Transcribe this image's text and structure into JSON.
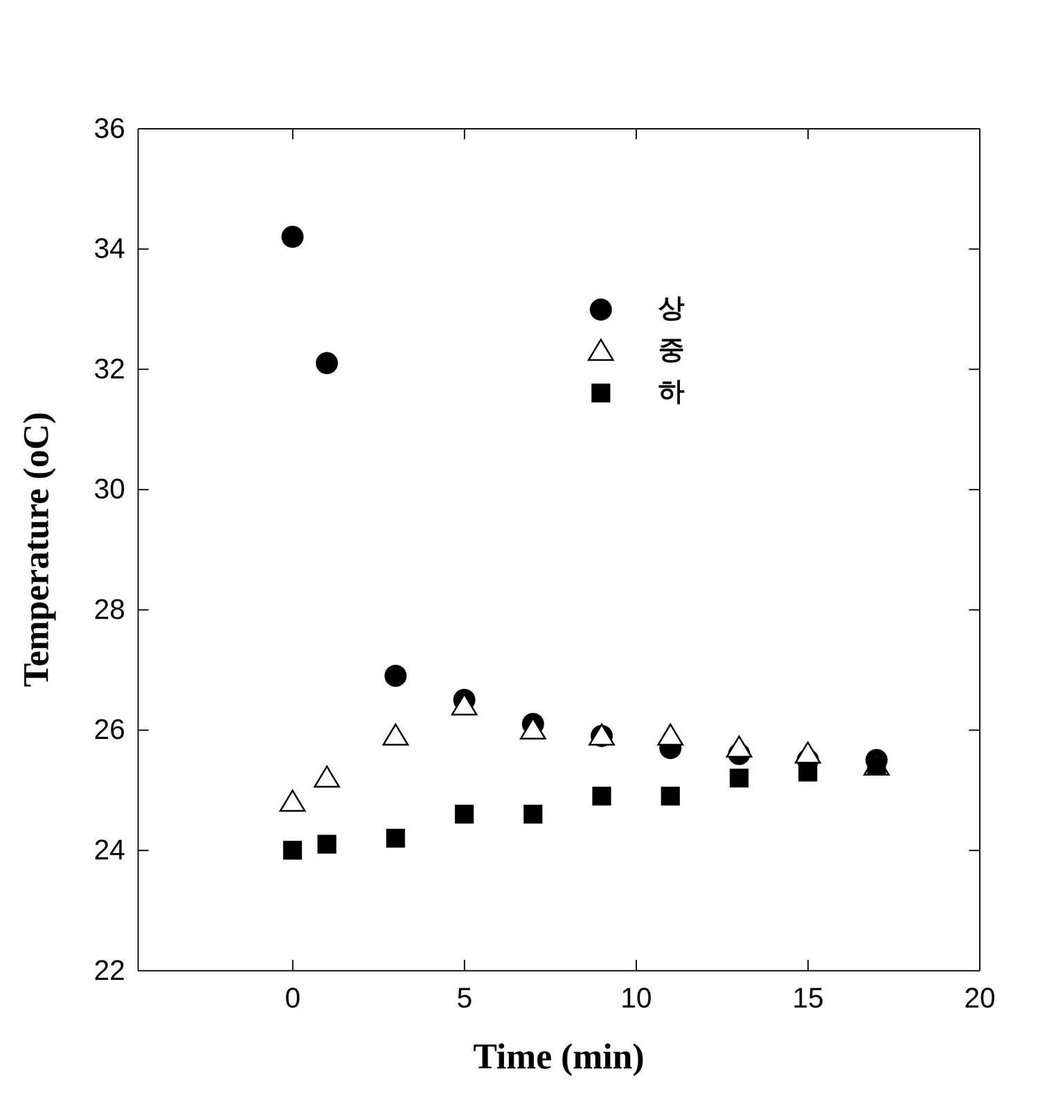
{
  "chart_data": {
    "type": "scatter",
    "x_label": "Time (min)",
    "y_label": "Temperature (oC)",
    "x": [
      0,
      1,
      3,
      5,
      7,
      9,
      11,
      13,
      15,
      17
    ],
    "series": [
      {
        "name": "상",
        "color": "#000000",
        "marker": "circle",
        "values": [
          34.2,
          32.1,
          26.9,
          26.5,
          26.1,
          25.9,
          25.7,
          25.6,
          25.5,
          25.5
        ]
      },
      {
        "name": "중",
        "color": "#000000",
        "marker": "open-triangle",
        "values": [
          24.8,
          25.2,
          25.9,
          26.4,
          26.0,
          25.9,
          25.9,
          25.7,
          25.6,
          25.4
        ]
      },
      {
        "name": "하",
        "color": "#000000",
        "marker": "square",
        "values": [
          24.0,
          24.1,
          24.2,
          24.6,
          24.6,
          24.9,
          24.9,
          25.2,
          25.3,
          25.4
        ]
      }
    ],
    "xlim": [
      -4.5,
      20
    ],
    "xticks": [
      0,
      5,
      10,
      15,
      20
    ],
    "ylim": [
      22,
      36
    ],
    "yticks": [
      22,
      24,
      26,
      28,
      30,
      32,
      34,
      36
    ],
    "legend": "upper center",
    "grid": false
  }
}
